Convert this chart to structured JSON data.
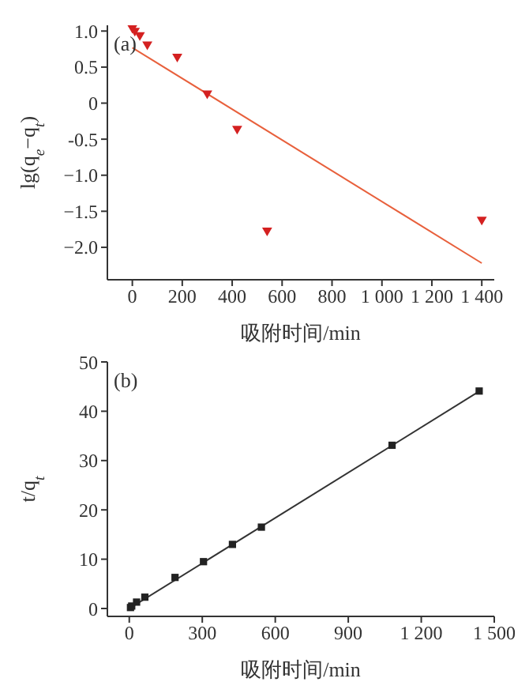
{
  "chart_data": [
    {
      "type": "scatter",
      "xlabel": "吸附时间/min",
      "ylabel": "lg(q$_{e}$−q$_{t}$)",
      "annotations": [
        "(a)"
      ],
      "xlim": [
        -100,
        1450
      ],
      "ylim": [
        -2.45,
        1.08
      ],
      "xticks": [
        0,
        200,
        400,
        600,
        800,
        {
          "value": 1000,
          "label": "1 000"
        },
        {
          "value": 1200,
          "label": "1 200"
        },
        {
          "value": 1400,
          "label": "1 400"
        }
      ],
      "yticks": [
        {
          "value": 1.0,
          "label": "1.0"
        },
        0.5,
        0,
        -0.5,
        {
          "value": -1.0,
          "label": "−1.0"
        },
        {
          "value": -1.5,
          "label": "−1.5"
        },
        {
          "value": -2.0,
          "label": "−2.0"
        }
      ],
      "grid": false,
      "series": [
        {
          "color": "#d42020",
          "marker": "triangle",
          "x": [
            0,
            10,
            30,
            60,
            180,
            300,
            420,
            540,
            1400
          ],
          "values": [
            1.03,
            0.99,
            0.93,
            0.8,
            0.63,
            0.12,
            -0.37,
            -1.78,
            -1.63
          ]
        },
        {
          "type": "line",
          "color": "#e8603c",
          "marker": "none",
          "line_style": "solid",
          "x": [
            0,
            1400
          ],
          "values": [
            0.77,
            -2.22
          ]
        }
      ]
    },
    {
      "type": "scatter",
      "xlabel": "吸附时间/min",
      "ylabel": "t/q$_{t}$",
      "annotations": [
        "(b)"
      ],
      "xlim": [
        -90,
        1500
      ],
      "ylim": [
        -1.6,
        50
      ],
      "xticks": [
        0,
        300,
        600,
        900,
        {
          "value": 1200,
          "label": "1 200"
        },
        {
          "value": 1500,
          "label": "1 500"
        }
      ],
      "yticks": [
        0,
        10,
        20,
        30,
        40,
        50
      ],
      "grid": false,
      "series": [
        {
          "color": "#222222",
          "marker": "square",
          "x": [
            5,
            10,
            30,
            64,
            188,
            305,
            424,
            543,
            1080,
            1438
          ],
          "values": [
            0.2,
            0.5,
            1.3,
            2.3,
            6.3,
            9.5,
            13.0,
            16.5,
            33.1,
            44.1
          ]
        },
        {
          "type": "line",
          "color": "#333333",
          "marker": "none",
          "line_style": "solid",
          "x": [
            0,
            1450
          ],
          "values": [
            0.0,
            44.4
          ]
        }
      ]
    }
  ]
}
